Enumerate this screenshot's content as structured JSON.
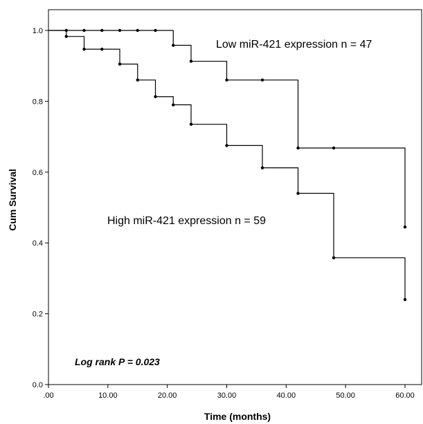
{
  "chart_data": {
    "type": "line",
    "step": true,
    "xlabel": "Time (months)",
    "ylabel": "Cum Survival",
    "xlim": [
      0,
      60
    ],
    "ylim": [
      0,
      1
    ],
    "x_ticks": [
      ".00",
      "10.00",
      "20.00",
      "30.00",
      "40.00",
      "50.00",
      "60.00"
    ],
    "y_ticks": [
      "0.0",
      "0.2",
      "0.4",
      "0.6",
      "0.8",
      "1.0"
    ],
    "grid": false,
    "annotation": "Log rank P = 0.023",
    "series": [
      {
        "name": "Low miR-421 expression n = 47",
        "steps": [
          {
            "x": 0,
            "y": 1.0
          },
          {
            "x": 21,
            "y": 0.958
          },
          {
            "x": 24,
            "y": 0.913
          },
          {
            "x": 30,
            "y": 0.86
          },
          {
            "x": 42,
            "y": 0.668
          },
          {
            "x": 60,
            "y": 0.445
          }
        ],
        "censored": [
          {
            "x": 3,
            "y": 1.0
          },
          {
            "x": 6,
            "y": 1.0
          },
          {
            "x": 9,
            "y": 1.0
          },
          {
            "x": 12,
            "y": 1.0
          },
          {
            "x": 15,
            "y": 1.0
          },
          {
            "x": 18,
            "y": 1.0
          },
          {
            "x": 36,
            "y": 0.86
          },
          {
            "x": 48,
            "y": 0.668
          }
        ]
      },
      {
        "name": "High miR-421 expression n = 59",
        "steps": [
          {
            "x": 0,
            "y": 1.0
          },
          {
            "x": 3,
            "y": 0.983
          },
          {
            "x": 6,
            "y": 0.947
          },
          {
            "x": 12,
            "y": 0.905
          },
          {
            "x": 15,
            "y": 0.86
          },
          {
            "x": 18,
            "y": 0.813
          },
          {
            "x": 21,
            "y": 0.79
          },
          {
            "x": 24,
            "y": 0.735
          },
          {
            "x": 30,
            "y": 0.675
          },
          {
            "x": 36,
            "y": 0.612
          },
          {
            "x": 42,
            "y": 0.54
          },
          {
            "x": 48,
            "y": 0.358
          },
          {
            "x": 60,
            "y": 0.24
          }
        ],
        "censored": [
          {
            "x": 9,
            "y": 0.947
          }
        ]
      }
    ]
  }
}
